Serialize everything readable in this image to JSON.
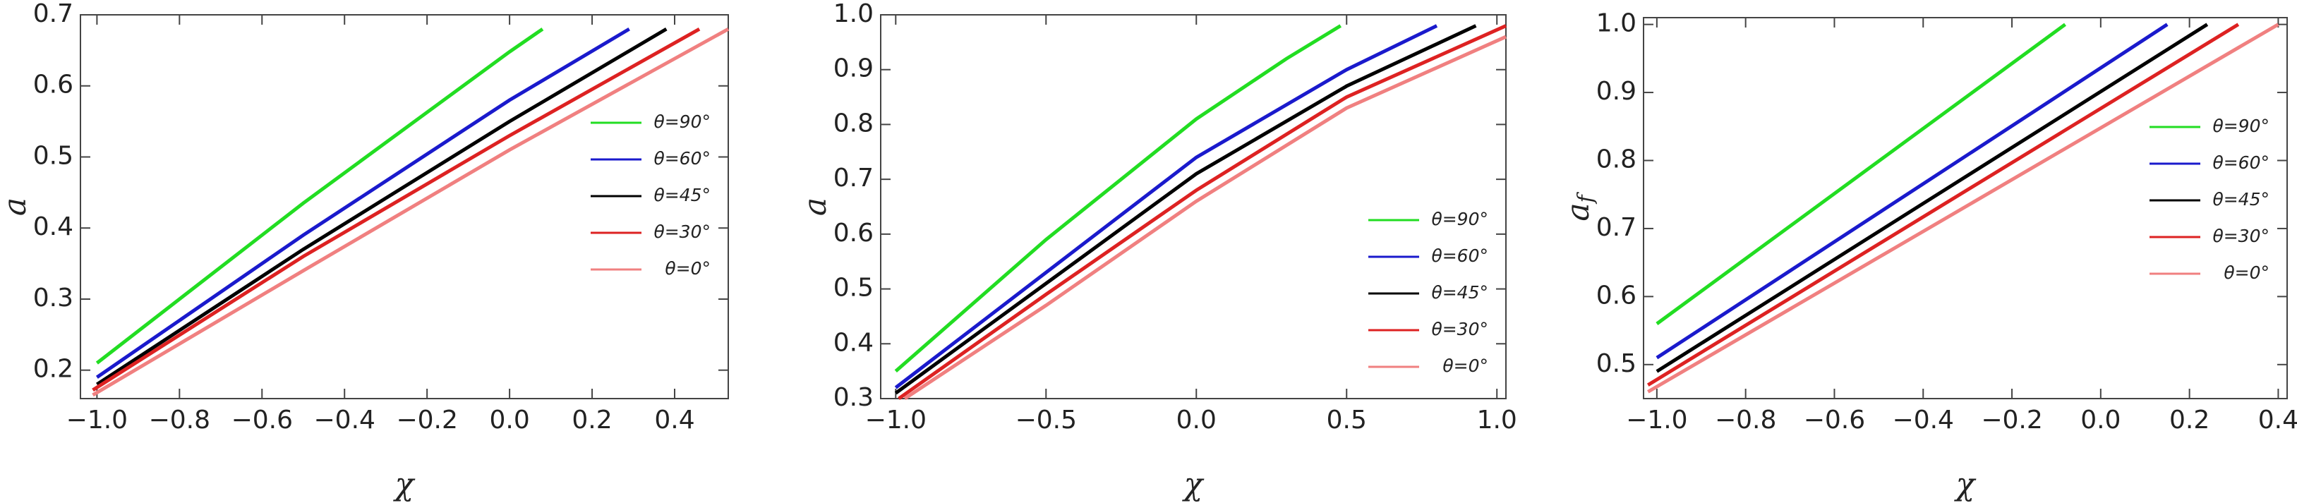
{
  "chart_data": [
    {
      "type": "line",
      "x_label": "χ",
      "y_label": {
        "main": "a"
      },
      "legend": "center right",
      "xlim": [
        -1.04,
        0.53
      ],
      "ylim": [
        0.16,
        0.7
      ],
      "xticks": [
        {
          "value": -1.0,
          "label": "−1.0"
        },
        {
          "value": -0.8,
          "label": "−0.8"
        },
        {
          "value": -0.6,
          "label": "−0.6"
        },
        {
          "value": -0.4,
          "label": "−0.4"
        },
        {
          "value": -0.2,
          "label": "−0.2"
        },
        {
          "value": 0.0,
          "label": "0.0"
        },
        0.2,
        0.4
      ],
      "yticks": [
        0.2,
        0.3,
        0.4,
        0.5,
        0.6,
        0.7
      ],
      "series": [
        {
          "name": "θ=90°",
          "color": "#22dd22",
          "x": [
            -1.0,
            -0.5,
            0.0,
            0.08
          ],
          "values": [
            0.21,
            0.435,
            0.648,
            0.68
          ]
        },
        {
          "name": "θ=60°",
          "color": "#1a1acc",
          "x": [
            -1.0,
            -0.5,
            0.0,
            0.29
          ],
          "values": [
            0.19,
            0.39,
            0.58,
            0.68
          ]
        },
        {
          "name": "θ=45°",
          "color": "#000000",
          "x": [
            -1.0,
            -0.5,
            0.0,
            0.38
          ],
          "values": [
            0.18,
            0.37,
            0.55,
            0.68
          ]
        },
        {
          "name": "θ=30°",
          "color": "#dd2222",
          "x": [
            -1.01,
            -0.5,
            0.0,
            0.46
          ],
          "values": [
            0.172,
            0.36,
            0.53,
            0.68
          ]
        },
        {
          "name": "θ=0°",
          "color": "#f08080",
          "x": [
            -1.01,
            -0.5,
            0.0,
            0.53
          ],
          "values": [
            0.165,
            0.34,
            0.51,
            0.68
          ]
        }
      ]
    },
    {
      "type": "line",
      "x_label": "χ",
      "y_label": {
        "main": "a"
      },
      "legend": "lower right",
      "xlim": [
        -1.05,
        1.03
      ],
      "ylim": [
        0.3,
        1.0
      ],
      "xticks": [
        {
          "value": -1.0,
          "label": "−1.0"
        },
        {
          "value": -0.5,
          "label": "−0.5"
        },
        {
          "value": 0.0,
          "label": "0.0"
        },
        0.5,
        {
          "value": 1.0,
          "label": "1.0"
        }
      ],
      "yticks": [
        0.3,
        0.4,
        0.5,
        0.6,
        0.7,
        0.8,
        0.9,
        {
          "value": 1.0,
          "label": "1.0"
        }
      ],
      "series": [
        {
          "name": "θ=90°",
          "color": "#22dd22",
          "x": [
            -1.0,
            -0.5,
            0.0,
            0.3,
            0.48
          ],
          "values": [
            0.35,
            0.59,
            0.81,
            0.92,
            0.98
          ]
        },
        {
          "name": "θ=60°",
          "color": "#1a1acc",
          "x": [
            -1.0,
            -0.5,
            0.0,
            0.5,
            0.8
          ],
          "values": [
            0.32,
            0.53,
            0.74,
            0.9,
            0.98
          ]
        },
        {
          "name": "θ=45°",
          "color": "#000000",
          "x": [
            -1.0,
            -0.5,
            0.0,
            0.5,
            0.93
          ],
          "values": [
            0.31,
            0.51,
            0.71,
            0.87,
            0.98
          ]
        },
        {
          "name": "θ=30°",
          "color": "#dd2222",
          "x": [
            -0.99,
            -0.5,
            0.0,
            0.5,
            1.03
          ],
          "values": [
            0.3,
            0.49,
            0.68,
            0.85,
            0.98
          ]
        },
        {
          "name": "θ=0°",
          "color": "#f08080",
          "x": [
            -0.97,
            -0.5,
            0.0,
            0.5,
            1.03
          ],
          "values": [
            0.3,
            0.47,
            0.66,
            0.83,
            0.96
          ]
        }
      ]
    },
    {
      "type": "line",
      "x_label": "χ",
      "y_label": {
        "main": "a",
        "sub": "f"
      },
      "legend": "upper right",
      "xlim": [
        -1.03,
        0.42
      ],
      "ylim": [
        0.45,
        1.01
      ],
      "xticks": [
        {
          "value": -1.0,
          "label": "−1.0"
        },
        {
          "value": -0.8,
          "label": "−0.8"
        },
        {
          "value": -0.6,
          "label": "−0.6"
        },
        {
          "value": -0.4,
          "label": "−0.4"
        },
        {
          "value": -0.2,
          "label": "−0.2"
        },
        {
          "value": 0.0,
          "label": "0.0"
        },
        0.2,
        0.4
      ],
      "yticks": [
        0.5,
        0.6,
        0.7,
        0.8,
        0.9,
        {
          "value": 1.0,
          "label": "1.0"
        }
      ],
      "series": [
        {
          "name": "θ=90°",
          "color": "#22dd22",
          "x": [
            -1.0,
            -0.08
          ],
          "values": [
            0.56,
            1.0
          ]
        },
        {
          "name": "θ=60°",
          "color": "#1a1acc",
          "x": [
            -1.0,
            0.15
          ],
          "values": [
            0.51,
            1.0
          ]
        },
        {
          "name": "θ=45°",
          "color": "#000000",
          "x": [
            -1.0,
            0.24
          ],
          "values": [
            0.49,
            1.0
          ]
        },
        {
          "name": "θ=30°",
          "color": "#dd2222",
          "x": [
            -1.02,
            0.31
          ],
          "values": [
            0.47,
            1.0
          ]
        },
        {
          "name": "θ=0°",
          "color": "#f08080",
          "x": [
            -1.02,
            0.4
          ],
          "values": [
            0.46,
            1.0
          ]
        }
      ]
    }
  ]
}
